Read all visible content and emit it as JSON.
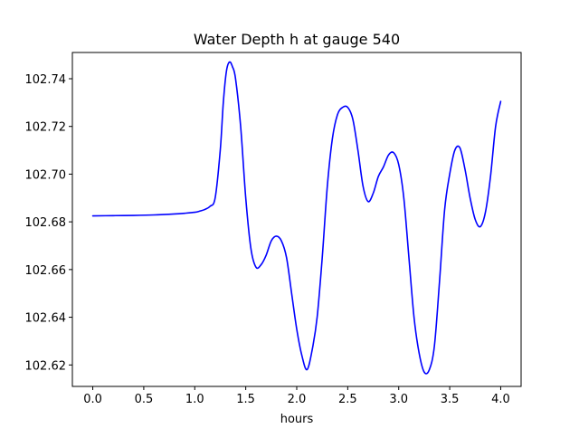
{
  "chart_data": {
    "type": "line",
    "title": "Water Depth h at gauge 540",
    "xlabel": "hours",
    "ylabel": "",
    "xlim": [
      -0.2,
      4.2
    ],
    "ylim": [
      102.611,
      102.751
    ],
    "xticks": [
      0.0,
      0.5,
      1.0,
      1.5,
      2.0,
      2.5,
      3.0,
      3.5,
      4.0
    ],
    "xtick_labels": [
      "0.0",
      "0.5",
      "1.0",
      "1.5",
      "2.0",
      "2.5",
      "3.0",
      "3.5",
      "4.0"
    ],
    "yticks": [
      102.62,
      102.64,
      102.66,
      102.68,
      102.7,
      102.72,
      102.74
    ],
    "ytick_labels": [
      "102.62",
      "102.64",
      "102.66",
      "102.68",
      "102.70",
      "102.72",
      "102.74"
    ],
    "grid": false,
    "series": [
      {
        "color": "#0000ff",
        "x": [
          0.0,
          0.2,
          0.4,
          0.6,
          0.8,
          0.9,
          1.0,
          1.05,
          1.1,
          1.15,
          1.2,
          1.25,
          1.28,
          1.31,
          1.34,
          1.37,
          1.4,
          1.45,
          1.5,
          1.55,
          1.6,
          1.65,
          1.7,
          1.75,
          1.8,
          1.85,
          1.9,
          1.95,
          2.0,
          2.05,
          2.1,
          2.15,
          2.2,
          2.25,
          2.3,
          2.35,
          2.4,
          2.45,
          2.5,
          2.55,
          2.6,
          2.65,
          2.7,
          2.75,
          2.8,
          2.85,
          2.9,
          2.95,
          3.0,
          3.05,
          3.1,
          3.15,
          3.2,
          3.25,
          3.3,
          3.35,
          3.4,
          3.45,
          3.5,
          3.55,
          3.6,
          3.65,
          3.7,
          3.75,
          3.8,
          3.85,
          3.9,
          3.95,
          4.0
        ],
        "y": [
          102.6825,
          102.6826,
          102.6827,
          102.6829,
          102.6833,
          102.6836,
          102.684,
          102.6845,
          102.6852,
          102.6865,
          102.69,
          102.71,
          102.73,
          102.743,
          102.747,
          102.745,
          102.74,
          102.72,
          102.69,
          102.669,
          102.661,
          102.662,
          102.666,
          102.672,
          102.674,
          102.672,
          102.665,
          102.65,
          102.635,
          102.624,
          102.618,
          102.626,
          102.64,
          102.665,
          102.695,
          102.715,
          102.725,
          102.728,
          102.728,
          102.723,
          102.71,
          102.695,
          102.6885,
          102.692,
          102.699,
          102.703,
          102.708,
          102.709,
          102.704,
          102.69,
          102.665,
          102.64,
          102.625,
          102.617,
          102.618,
          102.628,
          102.655,
          102.685,
          102.7,
          102.71,
          102.711,
          102.702,
          102.69,
          102.681,
          102.678,
          102.684,
          102.699,
          102.72,
          102.7305
        ]
      }
    ]
  }
}
